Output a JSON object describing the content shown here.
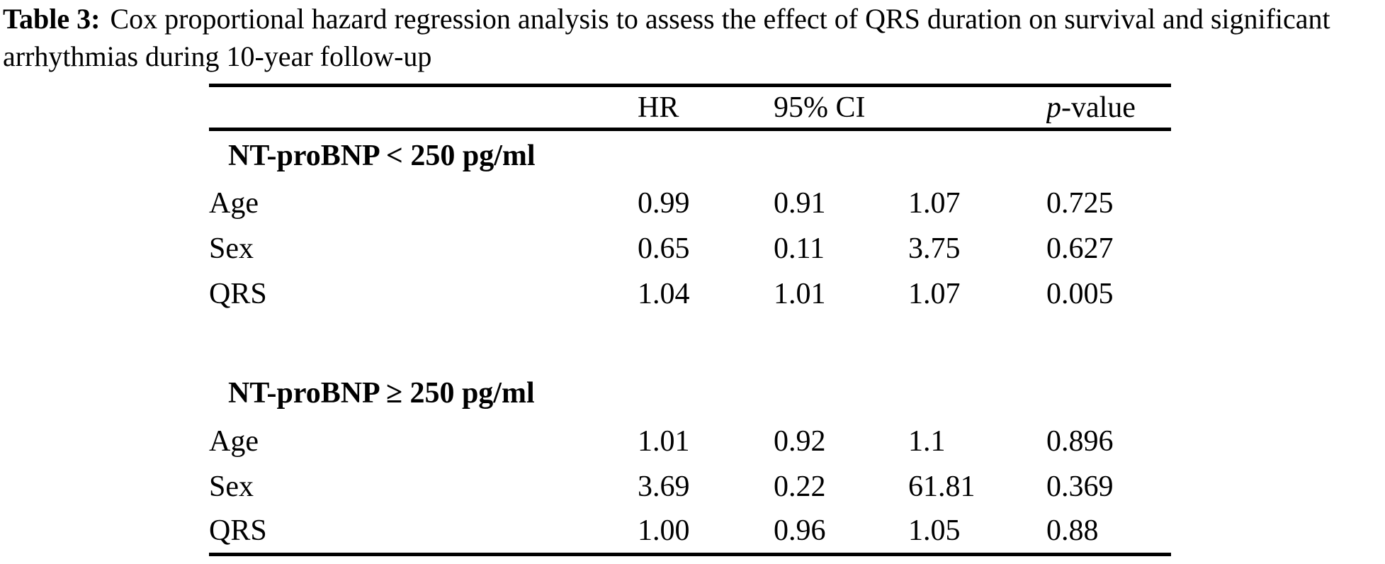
{
  "colors": {
    "text": "#000000",
    "background": "#ffffff",
    "rule": "#000000"
  },
  "caption": {
    "label": "Table 3:",
    "text": "Cox proportional hazard regression analysis to assess the effect of QRS duration on survival and significant arrhythmias during 10-year follow-up"
  },
  "table": {
    "headers": {
      "hr": "HR",
      "ci": "95% CI",
      "p_italic": "p",
      "p_rest": "-value"
    },
    "sections": [
      {
        "heading": "NT-proBNP < 250 pg/ml",
        "rows": [
          {
            "label": "Age",
            "hr": "0.99",
            "ci_low": "0.91",
            "ci_high": "1.07",
            "p": "0.725",
            "p_bold": false
          },
          {
            "label": "Sex",
            "hr": "0.65",
            "ci_low": "0.11",
            "ci_high": "3.75",
            "p": "0.627",
            "p_bold": false
          },
          {
            "label": "QRS",
            "hr": "1.04",
            "ci_low": "1.01",
            "ci_high": "1.07",
            "p": "0.005",
            "p_bold": true
          }
        ]
      },
      {
        "heading": "NT-proBNP ≥ 250 pg/ml",
        "rows": [
          {
            "label": "Age",
            "hr": "1.01",
            "ci_low": "0.92",
            "ci_high": "1.1",
            "p": "0.896",
            "p_bold": false
          },
          {
            "label": "Sex",
            "hr": "3.69",
            "ci_low": "0.22",
            "ci_high": "61.81",
            "p": "0.369",
            "p_bold": false
          },
          {
            "label": "QRS",
            "hr": "1.00",
            "ci_low": "0.96",
            "ci_high": "1.05",
            "p": "0.88",
            "p_bold": false
          }
        ]
      }
    ]
  }
}
